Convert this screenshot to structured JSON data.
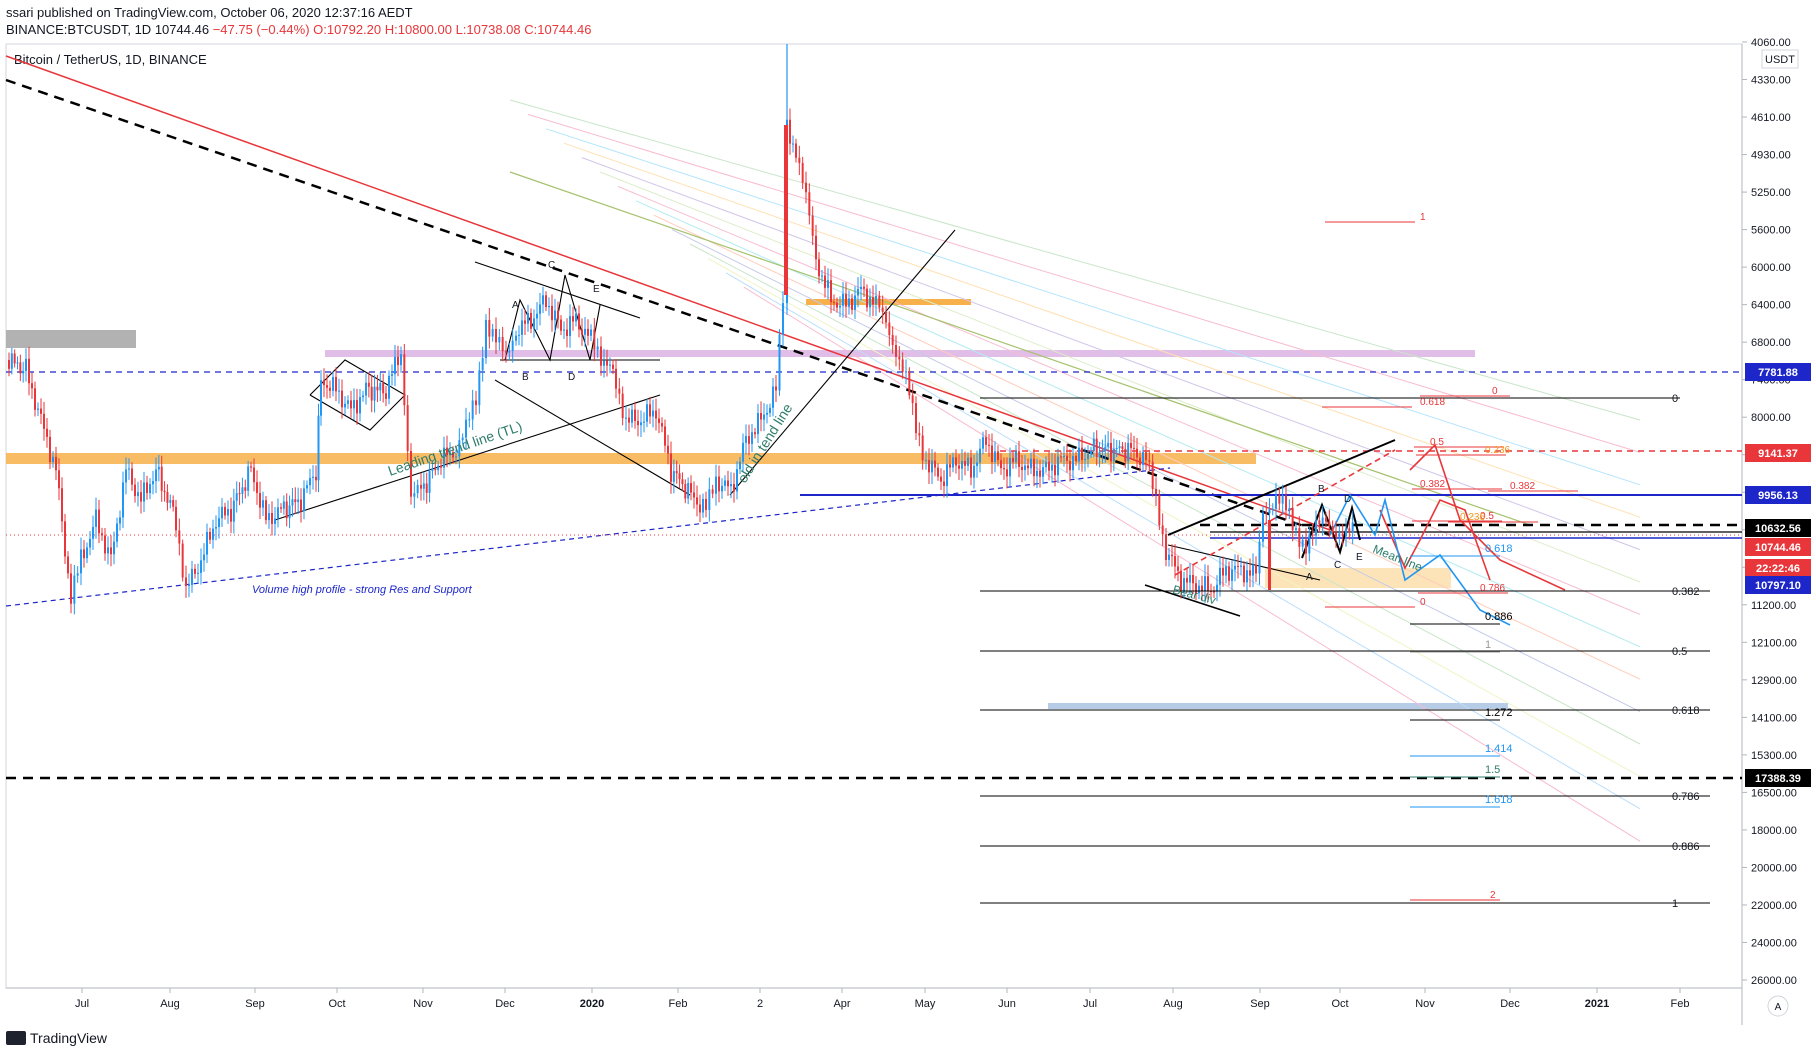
{
  "header": {
    "published_line": "ssari published on TradingView.com, October 06, 2020 12:37:16 AEDT",
    "symbol_line_prefix": "BINANCE:BTCUSDT, 1D",
    "last_price": "10744.46",
    "change": "−47.75 (−0.44%)",
    "ohlc": "O:10792.20 H:10800.00 L:10738.08 C:10744.46"
  },
  "chart_title": "Bitcoin / TetherUS, 1D, BINANCE",
  "currency_label": "USDT",
  "footer": {
    "brand": "TradingView"
  },
  "colors": {
    "down": "#e8363a",
    "up": "#2196f3",
    "grid_bg": "#ffffff",
    "resistance_orange": "#f7b04a",
    "pink_band": "#e1bee7",
    "gray_band": "#b2b2b2",
    "blue_line": "#1c26c9",
    "red_tag": "#e8363a",
    "black_tag": "#000000",
    "blue_tag": "#1c26c9"
  },
  "chart_data": {
    "type": "candlestick",
    "title": "Bitcoin / TetherUS, 1D, BINANCE",
    "y_axis": {
      "scale": "inverted-log",
      "ticks": [
        "4060.00",
        "4330.00",
        "4610.00",
        "4930.00",
        "5250.00",
        "5600.00",
        "6000.00",
        "6400.00",
        "6800.00",
        "7400.00",
        "8000.00",
        "8600.00",
        "9200.00",
        "9800.00",
        "10500.00",
        "11200.00",
        "12100.00",
        "12900.00",
        "14100.00",
        "15300.00",
        "16500.00",
        "18000.00",
        "20000.00",
        "22000.00",
        "24000.00",
        "26000.00"
      ]
    },
    "x_axis": {
      "ticks": [
        "Jul",
        "Aug",
        "Sep",
        "Oct",
        "Nov",
        "Dec",
        "2020",
        "Feb",
        "2",
        "Apr",
        "May",
        "Jun",
        "Jul",
        "Aug",
        "Sep",
        "Oct",
        "Nov",
        "Dec",
        "2021",
        "Feb"
      ]
    },
    "price_tags": [
      {
        "value": "7781.88",
        "style": "blue"
      },
      {
        "value": "9141.37",
        "style": "red"
      },
      {
        "value": "9956.13",
        "style": "blue"
      },
      {
        "value": "10632.56",
        "style": "black"
      },
      {
        "value": "10744.46",
        "style": "red"
      },
      {
        "value": "22:22:46",
        "style": "red"
      },
      {
        "value": "10797.10",
        "style": "blue"
      },
      {
        "value": "17388.39",
        "style": "black"
      }
    ],
    "fib_levels_black": [
      "0",
      "0.382",
      "0.5",
      "0.618",
      "0.786",
      "0.886",
      "1"
    ],
    "fib_levels_red": [
      "1",
      "0.618",
      "0",
      "0.5",
      "0.236",
      "0.382",
      "0.382",
      "0.5",
      "0.236",
      "0",
      "0.786",
      "2"
    ],
    "fib_levels_blue": [
      "0.618",
      "0.886",
      "1.272",
      "1.414",
      "1.5",
      "1.618",
      "1"
    ],
    "pattern_labels": [
      "A",
      "B",
      "C",
      "D",
      "E",
      "A",
      "B",
      "C",
      "D",
      "E"
    ],
    "annotations": [
      "Volume high profile - strong Res and Support",
      "Leading trend line (TL)",
      "old in  tend line",
      "Bear div",
      "Mean line"
    ]
  }
}
